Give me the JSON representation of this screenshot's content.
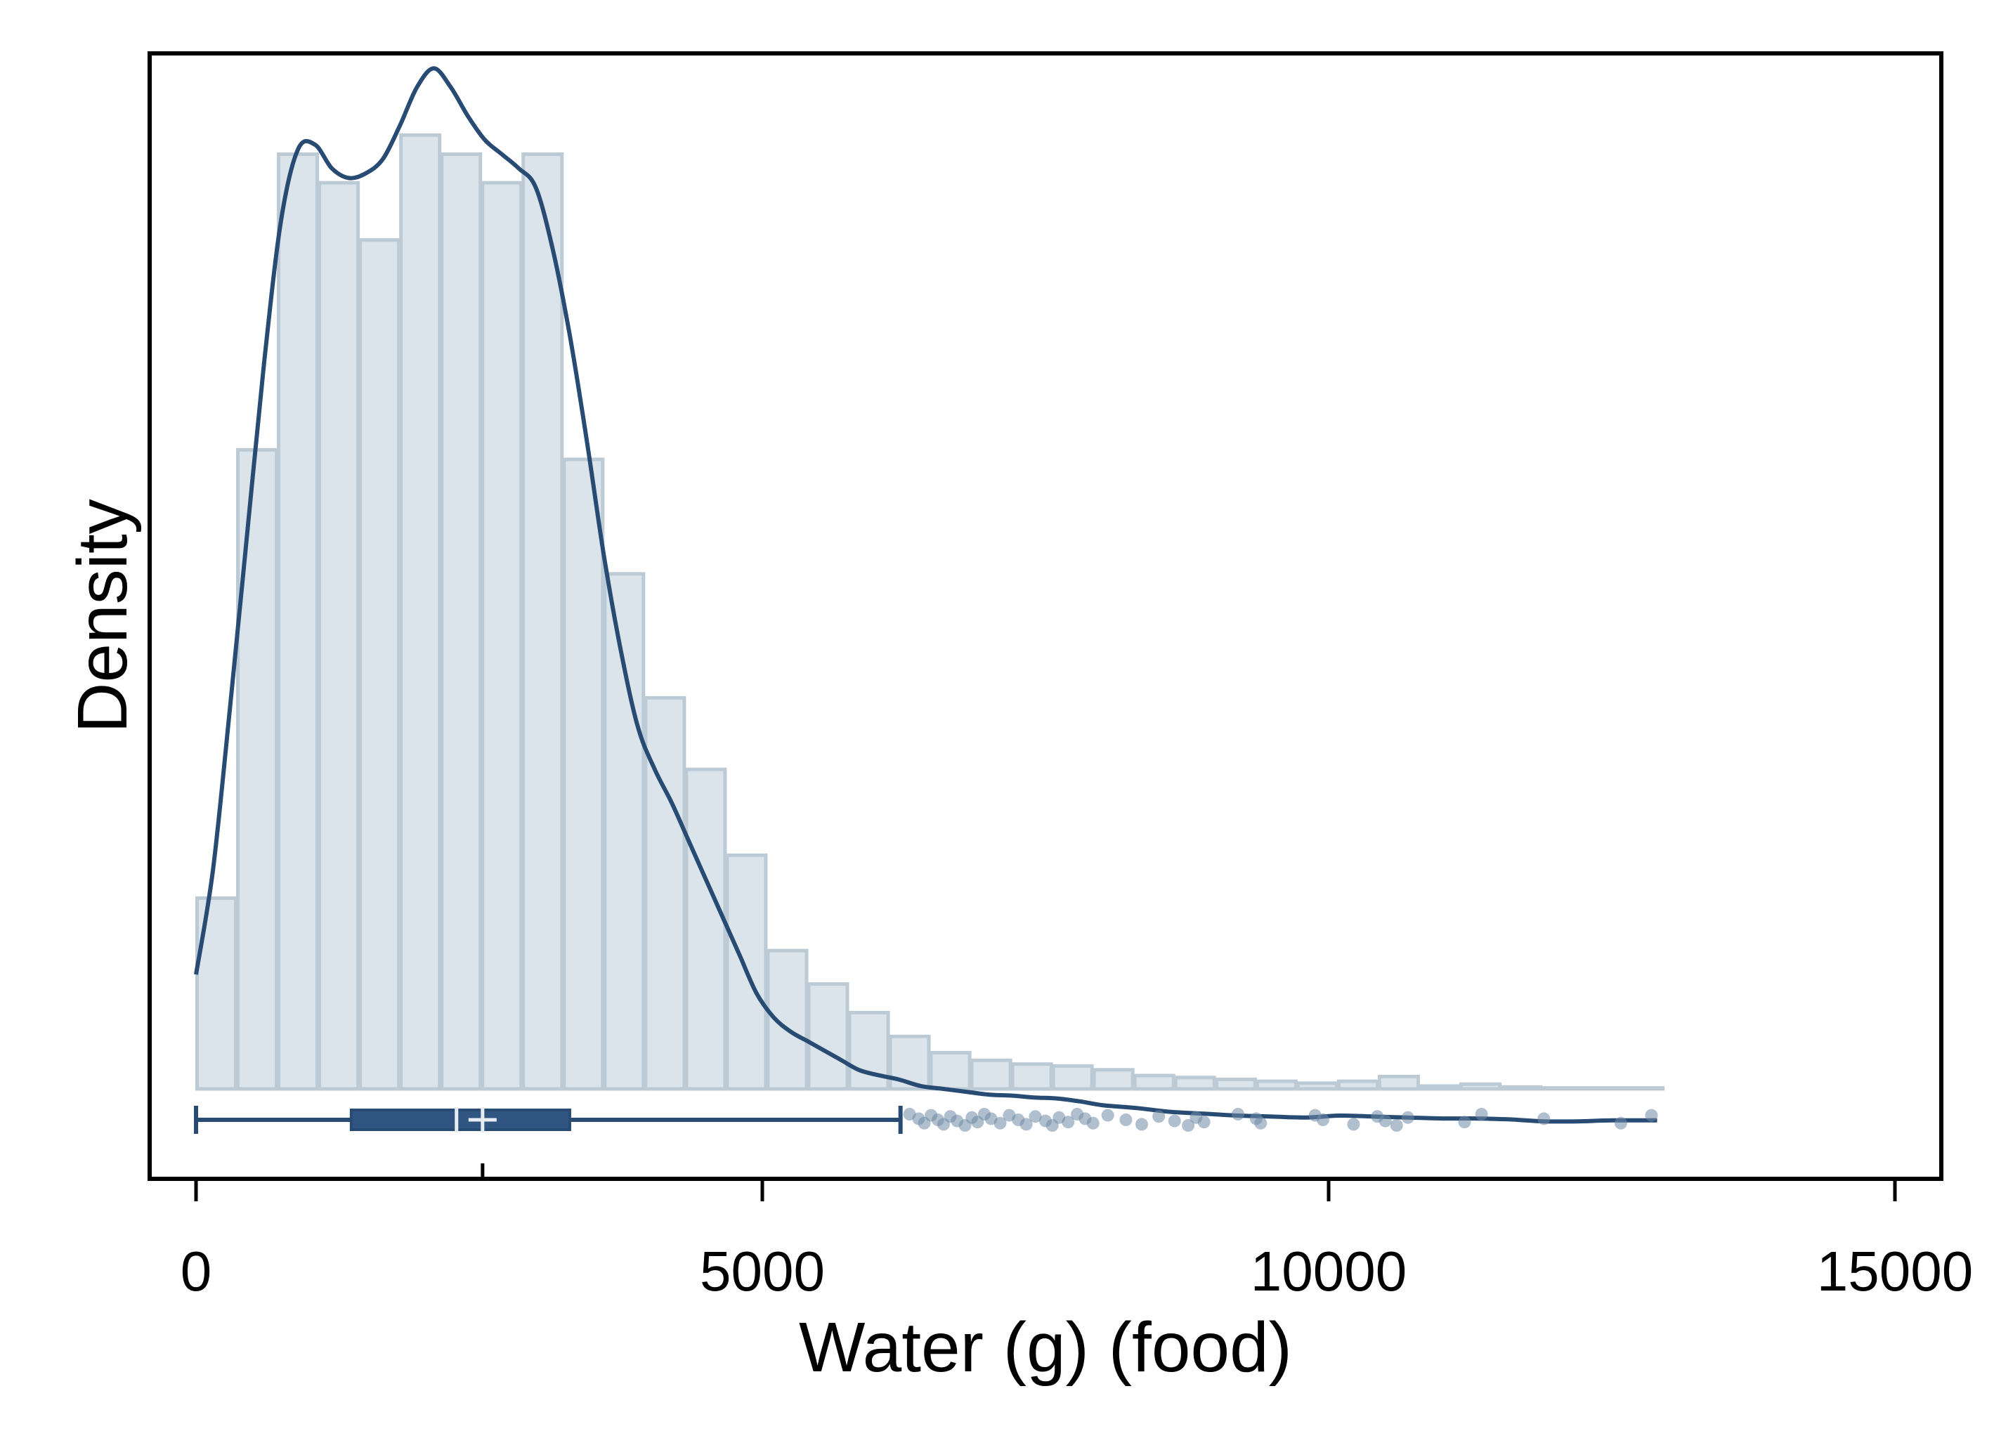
{
  "chart_data": {
    "type": "histogram",
    "xlabel": "Water (g) (food)",
    "ylabel": "Density",
    "xlim": [
      -200,
      15400
    ],
    "x_ticks": [
      "0",
      "5000",
      "10000",
      "15000"
    ],
    "y_ticks": [],
    "grid": false,
    "legend": "none",
    "colors": {
      "bar_fill": "#dce4eb",
      "bar_edge": "#bccad6",
      "line": "#284b73",
      "box": "#2f5580",
      "outlier": "#6f8aa6"
    },
    "histogram": {
      "bin_width": 360,
      "bins": [
        {
          "x0": 0,
          "x1": 360,
          "density": 0.2
        },
        {
          "x0": 360,
          "x1": 720,
          "density": 0.67
        },
        {
          "x0": 720,
          "x1": 1080,
          "density": 0.98
        },
        {
          "x0": 1080,
          "x1": 1440,
          "density": 0.95
        },
        {
          "x0": 1440,
          "x1": 1800,
          "density": 0.89
        },
        {
          "x0": 1800,
          "x1": 2160,
          "density": 1.0
        },
        {
          "x0": 2160,
          "x1": 2520,
          "density": 0.98
        },
        {
          "x0": 2520,
          "x1": 2880,
          "density": 0.95
        },
        {
          "x0": 2880,
          "x1": 3240,
          "density": 0.98
        },
        {
          "x0": 3240,
          "x1": 3600,
          "density": 0.66
        },
        {
          "x0": 3600,
          "x1": 3960,
          "density": 0.54
        },
        {
          "x0": 3960,
          "x1": 4320,
          "density": 0.41
        },
        {
          "x0": 4320,
          "x1": 4680,
          "density": 0.335
        },
        {
          "x0": 4680,
          "x1": 5040,
          "density": 0.245
        },
        {
          "x0": 5040,
          "x1": 5400,
          "density": 0.145
        },
        {
          "x0": 5400,
          "x1": 5760,
          "density": 0.11
        },
        {
          "x0": 5760,
          "x1": 6120,
          "density": 0.08
        },
        {
          "x0": 6120,
          "x1": 6480,
          "density": 0.055
        },
        {
          "x0": 6480,
          "x1": 6840,
          "density": 0.038
        },
        {
          "x0": 6840,
          "x1": 7200,
          "density": 0.03
        },
        {
          "x0": 7200,
          "x1": 7560,
          "density": 0.026
        },
        {
          "x0": 7560,
          "x1": 7920,
          "density": 0.024
        },
        {
          "x0": 7920,
          "x1": 8280,
          "density": 0.02
        },
        {
          "x0": 8280,
          "x1": 8640,
          "density": 0.014
        },
        {
          "x0": 8640,
          "x1": 9000,
          "density": 0.012
        },
        {
          "x0": 9000,
          "x1": 9360,
          "density": 0.01
        },
        {
          "x0": 9360,
          "x1": 9720,
          "density": 0.008
        },
        {
          "x0": 9720,
          "x1": 10080,
          "density": 0.006
        },
        {
          "x0": 10080,
          "x1": 10440,
          "density": 0.008
        },
        {
          "x0": 10440,
          "x1": 10800,
          "density": 0.013
        },
        {
          "x0": 10800,
          "x1": 11160,
          "density": 0.003
        },
        {
          "x0": 11160,
          "x1": 11520,
          "density": 0.005
        },
        {
          "x0": 11520,
          "x1": 11880,
          "density": 0.002
        },
        {
          "x0": 11880,
          "x1": 12240,
          "density": 0.001
        },
        {
          "x0": 12240,
          "x1": 12600,
          "density": 0.001
        },
        {
          "x0": 12600,
          "x1": 12960,
          "density": 0.001
        }
      ]
    },
    "kde": {
      "x": [
        0,
        150,
        300,
        450,
        600,
        750,
        900,
        1050,
        1200,
        1350,
        1500,
        1650,
        1800,
        1950,
        2100,
        2250,
        2400,
        2550,
        2700,
        2850,
        3000,
        3150,
        3300,
        3450,
        3600,
        3750,
        3900,
        4050,
        4200,
        4350,
        4500,
        4650,
        4800,
        4950,
        5100,
        5250,
        5400,
        5550,
        5700,
        5850,
        6000,
        6200,
        6400,
        6600,
        6800,
        7000,
        7200,
        7400,
        7600,
        7800,
        8000,
        8300,
        8600,
        8900,
        9200,
        9500,
        9800,
        10100,
        10400,
        10700,
        11000,
        11300,
        11600,
        11900,
        12200,
        12500,
        12900
      ],
      "y": [
        0.12,
        0.23,
        0.4,
        0.58,
        0.76,
        0.91,
        0.985,
        0.99,
        0.965,
        0.955,
        0.96,
        0.975,
        1.01,
        1.05,
        1.07,
        1.05,
        1.02,
        0.995,
        0.98,
        0.965,
        0.945,
        0.88,
        0.79,
        0.68,
        0.56,
        0.46,
        0.38,
        0.335,
        0.3,
        0.26,
        0.22,
        0.18,
        0.14,
        0.1,
        0.075,
        0.06,
        0.05,
        0.04,
        0.03,
        0.02,
        0.015,
        0.01,
        0.003,
        0.0,
        -0.003,
        -0.006,
        -0.007,
        -0.009,
        -0.01,
        -0.013,
        -0.017,
        -0.02,
        -0.024,
        -0.026,
        -0.028,
        -0.029,
        -0.03,
        -0.028,
        -0.029,
        -0.03,
        -0.031,
        -0.031,
        -0.032,
        -0.034,
        -0.034,
        -0.033,
        -0.033
      ]
    },
    "y_display_max": 1.04,
    "boxplot": {
      "min": 0,
      "q1": 1370,
      "median": 2300,
      "mean": 2530,
      "q3": 3300,
      "whisker_high": 6220,
      "mean_tick_on_axis": 2530,
      "outliers": [
        6300,
        6380,
        6430,
        6490,
        6550,
        6600,
        6660,
        6720,
        6790,
        6850,
        6900,
        6960,
        7020,
        7100,
        7180,
        7260,
        7330,
        7410,
        7500,
        7560,
        7620,
        7700,
        7780,
        7850,
        7920,
        8050,
        8210,
        8350,
        8500,
        8640,
        8760,
        8830,
        8900,
        9200,
        9360,
        9400,
        9880,
        9950,
        10220,
        10430,
        10500,
        10600,
        10700,
        11200,
        11350,
        11900,
        12580,
        12850
      ]
    }
  }
}
